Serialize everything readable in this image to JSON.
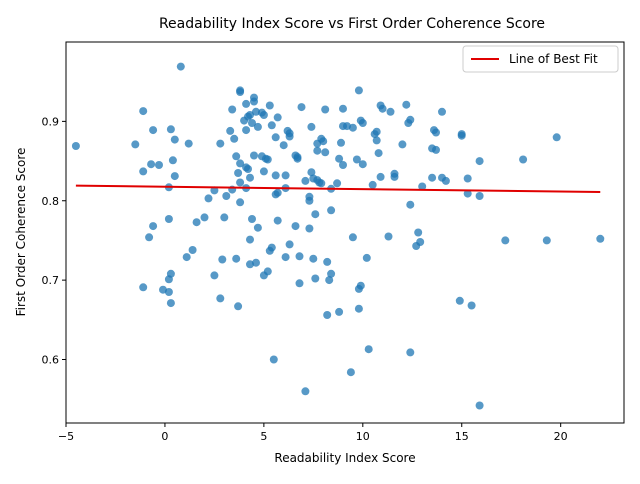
{
  "chart_data": {
    "type": "scatter",
    "title": "Readability Index Score vs First Order Coherence Score",
    "xlabel": "Readability Index Score",
    "ylabel": "First Order Coherence Score",
    "xlim": [
      -5.0,
      23.2
    ],
    "ylim": [
      0.52,
      1.0
    ],
    "xticks": [
      -5,
      0,
      5,
      10,
      15,
      20
    ],
    "yticks": [
      0.6,
      0.7,
      0.8,
      0.9
    ],
    "grid": false,
    "legend": {
      "placement": "upper right",
      "entries": [
        "Line of Best Fit"
      ]
    },
    "colors": {
      "points": "#1f77b4",
      "fit_line": "#e00000"
    },
    "fit_line": {
      "x": [
        -4.5,
        22.0
      ],
      "y": [
        0.819,
        0.811
      ]
    },
    "points": [
      [
        -4.5,
        0.869
      ],
      [
        -1.5,
        0.871
      ],
      [
        -1.1,
        0.913
      ],
      [
        -1.1,
        0.837
      ],
      [
        -0.7,
        0.846
      ],
      [
        -0.6,
        0.889
      ],
      [
        -0.3,
        0.845
      ],
      [
        -0.8,
        0.754
      ],
      [
        -0.6,
        0.768
      ],
      [
        -1.1,
        0.691
      ],
      [
        -0.1,
        0.688
      ],
      [
        0.2,
        0.817
      ],
      [
        0.3,
        0.89
      ],
      [
        0.4,
        0.851
      ],
      [
        0.5,
        0.877
      ],
      [
        0.5,
        0.831
      ],
      [
        0.8,
        0.969
      ],
      [
        0.2,
        0.777
      ],
      [
        0.3,
        0.708
      ],
      [
        0.2,
        0.701
      ],
      [
        0.2,
        0.685
      ],
      [
        0.3,
        0.671
      ],
      [
        1.2,
        0.872
      ],
      [
        1.4,
        0.738
      ],
      [
        1.6,
        0.773
      ],
      [
        1.1,
        0.729
      ],
      [
        2.0,
        0.779
      ],
      [
        2.2,
        0.803
      ],
      [
        2.5,
        0.813
      ],
      [
        2.5,
        0.706
      ],
      [
        2.8,
        0.872
      ],
      [
        2.9,
        0.726
      ],
      [
        2.8,
        0.677
      ],
      [
        3.0,
        0.779
      ],
      [
        3.1,
        0.806
      ],
      [
        3.3,
        0.888
      ],
      [
        3.4,
        0.915
      ],
      [
        3.4,
        0.814
      ],
      [
        3.5,
        0.878
      ],
      [
        3.6,
        0.856
      ],
      [
        3.6,
        0.727
      ],
      [
        3.7,
        0.667
      ],
      [
        3.7,
        0.835
      ],
      [
        3.8,
        0.937
      ],
      [
        3.8,
        0.939
      ],
      [
        3.8,
        0.847
      ],
      [
        3.8,
        0.823
      ],
      [
        3.8,
        0.798
      ],
      [
        4.0,
        0.901
      ],
      [
        4.1,
        0.922
      ],
      [
        4.1,
        0.889
      ],
      [
        4.1,
        0.842
      ],
      [
        4.1,
        0.816
      ],
      [
        4.2,
        0.906
      ],
      [
        4.2,
        0.84
      ],
      [
        4.3,
        0.908
      ],
      [
        4.3,
        0.829
      ],
      [
        4.3,
        0.751
      ],
      [
        4.3,
        0.72
      ],
      [
        4.4,
        0.898
      ],
      [
        4.4,
        0.777
      ],
      [
        4.5,
        0.925
      ],
      [
        4.5,
        0.857
      ],
      [
        4.5,
        0.93
      ],
      [
        4.6,
        0.912
      ],
      [
        4.6,
        0.722
      ],
      [
        4.7,
        0.893
      ],
      [
        4.7,
        0.766
      ],
      [
        4.9,
        0.856
      ],
      [
        4.9,
        0.911
      ],
      [
        5.0,
        0.908
      ],
      [
        5.0,
        0.837
      ],
      [
        5.0,
        0.706
      ],
      [
        5.1,
        0.853
      ],
      [
        5.2,
        0.852
      ],
      [
        5.2,
        0.711
      ],
      [
        5.3,
        0.92
      ],
      [
        5.3,
        0.737
      ],
      [
        5.4,
        0.741
      ],
      [
        5.4,
        0.895
      ],
      [
        5.5,
        0.6
      ],
      [
        5.6,
        0.88
      ],
      [
        5.6,
        0.808
      ],
      [
        5.6,
        0.832
      ],
      [
        5.7,
        0.81
      ],
      [
        5.7,
        0.905
      ],
      [
        5.7,
        0.775
      ],
      [
        6.0,
        0.87
      ],
      [
        6.1,
        0.832
      ],
      [
        6.1,
        0.816
      ],
      [
        6.1,
        0.729
      ],
      [
        6.2,
        0.888
      ],
      [
        6.3,
        0.881
      ],
      [
        6.3,
        0.885
      ],
      [
        6.3,
        0.745
      ],
      [
        6.6,
        0.857
      ],
      [
        6.6,
        0.768
      ],
      [
        6.7,
        0.853
      ],
      [
        6.7,
        0.855
      ],
      [
        6.8,
        0.696
      ],
      [
        6.8,
        0.73
      ],
      [
        6.9,
        0.918
      ],
      [
        7.1,
        0.56
      ],
      [
        7.1,
        0.825
      ],
      [
        7.3,
        0.805
      ],
      [
        7.3,
        0.765
      ],
      [
        7.3,
        0.8
      ],
      [
        7.4,
        0.836
      ],
      [
        7.4,
        0.893
      ],
      [
        7.5,
        0.828
      ],
      [
        7.5,
        0.727
      ],
      [
        7.6,
        0.702
      ],
      [
        7.6,
        0.783
      ],
      [
        7.7,
        0.863
      ],
      [
        7.7,
        0.872
      ],
      [
        7.7,
        0.826
      ],
      [
        7.8,
        0.823
      ],
      [
        7.9,
        0.878
      ],
      [
        7.9,
        0.822
      ],
      [
        8.0,
        0.875
      ],
      [
        8.1,
        0.861
      ],
      [
        8.1,
        0.915
      ],
      [
        8.2,
        0.723
      ],
      [
        8.2,
        0.656
      ],
      [
        8.3,
        0.7
      ],
      [
        8.4,
        0.788
      ],
      [
        8.4,
        0.815
      ],
      [
        8.4,
        0.708
      ],
      [
        8.7,
        0.822
      ],
      [
        8.8,
        0.853
      ],
      [
        8.8,
        0.66
      ],
      [
        8.9,
        0.873
      ],
      [
        9.0,
        0.916
      ],
      [
        9.0,
        0.845
      ],
      [
        9.0,
        0.894
      ],
      [
        9.2,
        0.894
      ],
      [
        9.4,
        0.584
      ],
      [
        9.5,
        0.754
      ],
      [
        9.5,
        0.892
      ],
      [
        9.7,
        0.852
      ],
      [
        9.8,
        0.939
      ],
      [
        9.8,
        0.664
      ],
      [
        9.8,
        0.689
      ],
      [
        9.9,
        0.693
      ],
      [
        9.9,
        0.901
      ],
      [
        10.0,
        0.898
      ],
      [
        10.0,
        0.846
      ],
      [
        10.2,
        0.728
      ],
      [
        10.3,
        0.613
      ],
      [
        10.5,
        0.82
      ],
      [
        10.6,
        0.884
      ],
      [
        10.7,
        0.887
      ],
      [
        10.7,
        0.876
      ],
      [
        10.8,
        0.86
      ],
      [
        10.9,
        0.92
      ],
      [
        10.9,
        0.83
      ],
      [
        11.0,
        0.916
      ],
      [
        11.3,
        0.755
      ],
      [
        11.4,
        0.912
      ],
      [
        11.6,
        0.834
      ],
      [
        11.6,
        0.83
      ],
      [
        12.0,
        0.871
      ],
      [
        12.2,
        0.921
      ],
      [
        12.3,
        0.898
      ],
      [
        12.4,
        0.902
      ],
      [
        12.4,
        0.795
      ],
      [
        12.4,
        0.609
      ],
      [
        12.7,
        0.743
      ],
      [
        12.8,
        0.76
      ],
      [
        12.9,
        0.748
      ],
      [
        13.0,
        0.818
      ],
      [
        13.5,
        0.866
      ],
      [
        13.5,
        0.829
      ],
      [
        13.6,
        0.889
      ],
      [
        13.7,
        0.864
      ],
      [
        13.7,
        0.886
      ],
      [
        14.0,
        0.912
      ],
      [
        14.0,
        0.829
      ],
      [
        14.2,
        0.825
      ],
      [
        14.9,
        0.674
      ],
      [
        15.0,
        0.884
      ],
      [
        15.0,
        0.882
      ],
      [
        15.3,
        0.809
      ],
      [
        15.3,
        0.828
      ],
      [
        15.5,
        0.668
      ],
      [
        15.9,
        0.85
      ],
      [
        15.9,
        0.806
      ],
      [
        15.9,
        0.542
      ],
      [
        17.2,
        0.75
      ],
      [
        18.1,
        0.852
      ],
      [
        19.3,
        0.75
      ],
      [
        19.8,
        0.88
      ],
      [
        22.0,
        0.752
      ]
    ]
  }
}
